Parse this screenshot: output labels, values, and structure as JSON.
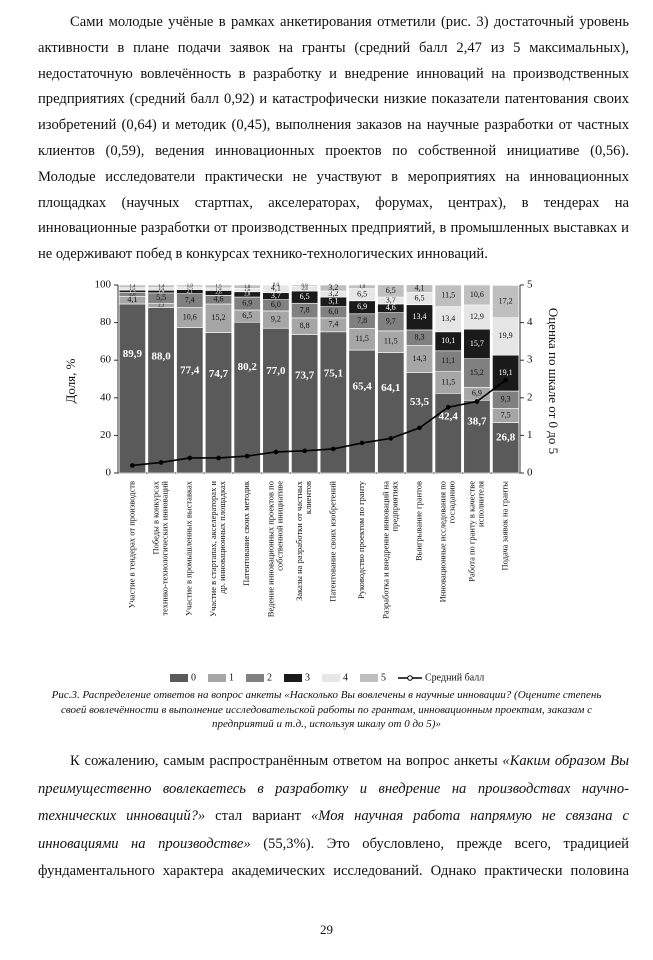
{
  "paragraphs": [
    {
      "runs": [
        {
          "text": "Сами молодые учёные в рамках анкетирования отметили (рис. 3) достаточный уровень активности в плане подачи заявок на гранты (средний балл 2,47 из 5 максимальных), недостаточную вовлечённость в разработку и внедрение инноваций на производственных предприятиях (средний балл 0,92) и катастрофически низкие показатели патентования своих изобретений (0,64) и методик (0,45), выполнения заказов на научные разработки от частных клиентов (0,59), ведения инновационных проектов по собственной инициативе (0,56). Молодые исследователи практически не участвуют в мероприятиях на инновационных площадках (научных стартпах, акселераторах, форумах, центрах), в тендерах на инновационные разработки от производственных предприятий, в промышленных выставках и не одерживают побед в конкурсах технико-технологических инноваций.",
          "italic": false
        }
      ]
    },
    {
      "runs": [
        {
          "text": "К сожалению, самым распространённым ответом на вопрос анкеты ",
          "italic": false
        },
        {
          "text": "«Каким образом Вы преимущественно вовлекаетесь в разработку и внедрение на производствах научно-технических инноваций?»",
          "italic": true
        },
        {
          "text": " стал вариант ",
          "italic": false
        },
        {
          "text": "«Моя научная работа напрямую не связана с инновациями на производстве»",
          "italic": true
        },
        {
          "text": " (55,3%). Это обусловлено, прежде всего, традицией фундаментального характера академических исследований. Однако практически половина",
          "italic": false
        }
      ]
    }
  ],
  "chart_data": {
    "type": "bar",
    "stacked": true,
    "ylabel": "Доля, %",
    "y2label": "Оценка по шкале от 0 до 5",
    "categories": [
      "Участие в тендерах от производств",
      "Победы в конкурсах технико-технологических инноваций",
      "Участие в промышленных выставках",
      "Участие в стартапах, акселераторах и др. инновационных площадках",
      "Патентование своих методик",
      "Ведение инновационных проектов по собственной инициативе",
      "Заказы на разработки от частных клиентов",
      "Патентование своих изобретений",
      "Руководство проектом по гранту",
      "Разработка и внедрение инноваций на предприятиях",
      "Выигрывание грантов",
      "Инновационные исследования по госзаданию",
      "Работа по гранту в качестве исполнителя",
      "Подача заявок на гранты"
    ],
    "series": [
      {
        "name": "0",
        "color": "#5a5a5a",
        "values": [
          89.9,
          88.0,
          77.4,
          74.7,
          80.2,
          77.0,
          73.7,
          75.1,
          65.4,
          64.1,
          53.5,
          42.4,
          38.7,
          26.8
        ],
        "value_labels": [
          "89,9",
          "88,0",
          "77,4",
          "74,7",
          "80,2",
          "77,0",
          "73,7",
          "75,1",
          "65,4",
          "64,1",
          "53,5",
          "42,4",
          "38,7",
          "26,8"
        ]
      },
      {
        "name": "1",
        "color": "#a6a6a6",
        "values": [
          4.1,
          2.3,
          10.6,
          15.2,
          6.5,
          9.2,
          8.8,
          7.4,
          11.5,
          11.5,
          14.3,
          11.5,
          6.9,
          7.5
        ],
        "value_labels": [
          "4,1",
          "2,3",
          "10,6",
          "15,2",
          "6,5",
          "9,2",
          "8,8",
          "7,4",
          "11,5",
          "11,5",
          "14,3",
          "11,5",
          "6,9",
          "7,5"
        ]
      },
      {
        "name": "2",
        "color": "#808080",
        "values": [
          2.0,
          5.5,
          7.4,
          4.6,
          6.9,
          6.0,
          7.8,
          6.0,
          7.8,
          9.7,
          8.3,
          11.1,
          15.2,
          9.3
        ],
        "value_labels": [
          "2,0",
          "5,5",
          "7,4",
          "4,6",
          "6,9",
          "6,0",
          "7,8",
          "6,0",
          "7,8",
          "9,7",
          "8,3",
          "11,1",
          "15,2",
          "9,3"
        ]
      },
      {
        "name": "3",
        "color": "#1a1a1a",
        "values": [
          1.3,
          1.4,
          2.1,
          2.6,
          2.8,
          3.7,
          6.5,
          5.1,
          6.9,
          4.6,
          13.4,
          10.1,
          15.7,
          19.1
        ],
        "value_labels": [
          "1,3",
          "1,4",
          "2,1",
          "2,6",
          "2,8",
          "3,7",
          "6,5",
          "5,1",
          "6,9",
          "4,6",
          "13,4",
          "10,1",
          "15,7",
          "19,1"
        ]
      },
      {
        "name": "4",
        "color": "#e6e6e6",
        "values": [
          1.3,
          1.4,
          1.5,
          1.4,
          1.8,
          4.1,
          2.4,
          3.2,
          6.5,
          3.7,
          6.5,
          13.4,
          12.9,
          19.9
        ],
        "value_labels": [
          "1,3",
          "1,4",
          "1,5",
          "1,4",
          "1,8",
          "4,1",
          "2,4",
          "3,2",
          "6,5",
          "3,7",
          "6,5",
          "13,4",
          "12,9",
          "19,9"
        ]
      },
      {
        "name": "5",
        "color": "#bfbfbf",
        "values": [
          1.4,
          1.4,
          1.0,
          1.5,
          1.8,
          0.0,
          0.8,
          3.2,
          1.9,
          6.5,
          4.1,
          11.5,
          10.6,
          17.2
        ],
        "value_labels": [
          "1,4",
          "1,4",
          "1,0",
          "1,5",
          "1,8",
          "0,0",
          "0,8",
          "3,2",
          "1,9",
          "6,5",
          "4,1",
          "11,5",
          "10,6",
          "17,2"
        ]
      },
      {
        "name": "Средний балл",
        "type": "line",
        "axis": "y2",
        "color": "#000000",
        "values": [
          0.2,
          0.28,
          0.4,
          0.4,
          0.45,
          0.56,
          0.59,
          0.64,
          0.8,
          0.92,
          1.2,
          1.75,
          1.9,
          2.47
        ]
      }
    ],
    "ylim": [
      0,
      100
    ],
    "yticks": [
      0,
      20,
      40,
      60,
      80,
      100
    ],
    "y2lim": [
      0,
      5
    ],
    "y2ticks": [
      0,
      1,
      2,
      3,
      4,
      5
    ],
    "legend": "bottom"
  },
  "caption": "Рис.3. Распределение ответов на вопрос анкеты «Насколько Вы вовлечены в научные инновации? (Оцените степень своей вовлечённости в выполнение исследовательской работы по грантам, инновационным проектам, заказам с предприятий и т.д., используя шкалу от 0 до 5)»",
  "page_number": "29"
}
